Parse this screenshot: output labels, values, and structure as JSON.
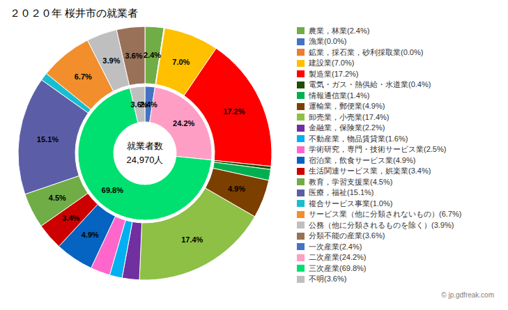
{
  "chart_data": {
    "type": "pie",
    "title": "２０２０年 桜井市の就業者",
    "annotations": [
      "就業者数",
      "24,970人",
      "© jp.gdfreak.com"
    ],
    "data_labels": true,
    "legend": "right",
    "series": [
      {
        "values": [
          2.4,
          0.05,
          0.05,
          7.0,
          17.2,
          0.4,
          1.4,
          4.9,
          17.4,
          2.2,
          1.6,
          2.5,
          4.9,
          3.4,
          4.5,
          15.1,
          1.0,
          6.7,
          3.9,
          3.6
        ],
        "value_labels": [
          "2.4%",
          null,
          null,
          "7.0%",
          "17.2%",
          null,
          null,
          "4.9%",
          "17.4%",
          null,
          null,
          null,
          "4.9%",
          "3.4%",
          "4.5%",
          "15.1%",
          null,
          "6.7%",
          "3.9%",
          "3.6%"
        ],
        "colors": [
          "#70AD47",
          "#4472C4",
          "#ED7D31",
          "#FFC000",
          "#FF0000",
          "#1F4E00",
          "#00B050",
          "#7B3F00",
          "#8DC045",
          "#7030A0",
          "#00B0F0",
          "#FF66CC",
          "#0563C1",
          "#CC0000",
          "#70AD47",
          "#5B5EA6",
          "#17BECF",
          "#F28E2B",
          "#BFBFBF",
          "#997058"
        ]
      },
      {
        "values": [
          2.4,
          24.2,
          69.8,
          3.6
        ],
        "value_labels": [
          "2.4%",
          "24.2%",
          "69.8%",
          "3.6%"
        ],
        "colors": [
          "#4472C4",
          "#FF9EC4",
          "#00E070",
          "#BFBFBF"
        ]
      }
    ],
    "legend_entries": [
      {
        "label": "農業，林業(2.4%)",
        "color": "#70AD47"
      },
      {
        "label": "漁業(0.0%)",
        "color": "#4472C4"
      },
      {
        "label": "鉱業，採石業，砂利採取業(0.0%)",
        "color": "#ED7D31"
      },
      {
        "label": "建設業(7.0%)",
        "color": "#FFC000"
      },
      {
        "label": "製造業(17.2%)",
        "color": "#FF0000"
      },
      {
        "label": "電気・ガス・熱供給・水道業(0.4%)",
        "color": "#1F4E00"
      },
      {
        "label": "情報通信業(1.4%)",
        "color": "#00B050"
      },
      {
        "label": "運輸業，郵便業(4.9%)",
        "color": "#7B3F00"
      },
      {
        "label": "卸売業，小売業(17.4%)",
        "color": "#8DC045"
      },
      {
        "label": "金融業，保険業(2.2%)",
        "color": "#7030A0"
      },
      {
        "label": "不動産業，物品賃貸業(1.6%)",
        "color": "#00B0F0"
      },
      {
        "label": "学術研究，専門・技術サービス業(2.5%)",
        "color": "#FF66CC"
      },
      {
        "label": "宿泊業，飲食サービス業(4.9%)",
        "color": "#0563C1"
      },
      {
        "label": "生活関連サービス業，娯楽業(3.4%)",
        "color": "#CC0000"
      },
      {
        "label": "教育，学習支援業(4.5%)",
        "color": "#70AD47"
      },
      {
        "label": "医療，福祉(15.1%)",
        "color": "#5B5EA6"
      },
      {
        "label": "複合サービス事業(1.0%)",
        "color": "#17BECF"
      },
      {
        "label": "サービス業（他に分類されないもの）(6.7%)",
        "color": "#F28E2B"
      },
      {
        "label": "公務（他に分類されるものを除く）(3.9%)",
        "color": "#BFBFBF"
      },
      {
        "label": "分類不能の産業(3.6%)",
        "color": "#997058"
      },
      {
        "label": "一次産業(2.4%)",
        "color": "#4472C4"
      },
      {
        "label": "二次産業(24.2%)",
        "color": "#FF9EC4"
      },
      {
        "label": "三次産業(69.8%)",
        "color": "#00E070"
      },
      {
        "label": "不明(3.6%)",
        "color": "#BFBFBF"
      }
    ]
  }
}
